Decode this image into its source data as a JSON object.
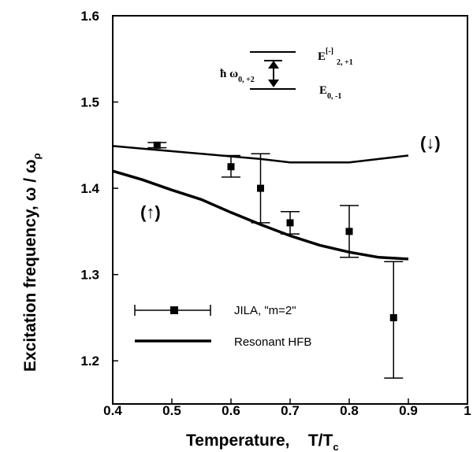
{
  "chart_data": {
    "type": "line",
    "xlabel": "Temperature,    T/T",
    "xlabel_sub": "c",
    "ylabel": "Excitation frequency,  ω / ω",
    "ylabel_sub": "ρ",
    "xlim": [
      0.4,
      1.0
    ],
    "ylim": [
      1.15,
      1.6
    ],
    "x_ticks": [
      0.4,
      0.5,
      0.6,
      0.7,
      0.8,
      0.9,
      1.0
    ],
    "x_tick_labels": [
      "0.4",
      "0.5",
      "0.6",
      "0.7",
      "0.8",
      "0.9",
      "1"
    ],
    "y_ticks": [
      1.2,
      1.3,
      1.4,
      1.5,
      1.6
    ],
    "y_tick_labels": [
      "1.2",
      "1.3",
      "1.4",
      "1.5",
      "1.6"
    ],
    "grid": false,
    "legend_position": "bottom-left",
    "series": [
      {
        "name": "JILA, \"m=2\"",
        "kind": "errorbar",
        "x": [
          0.475,
          0.6,
          0.65,
          0.7,
          0.8,
          0.875
        ],
        "y": [
          1.45,
          1.425,
          1.4,
          1.36,
          1.35,
          1.25
        ],
        "yerr_low": [
          1.447,
          1.413,
          1.36,
          1.347,
          1.32,
          1.18
        ],
        "yerr_high": [
          1.453,
          1.438,
          1.44,
          1.373,
          1.38,
          1.315
        ]
      },
      {
        "name": "Resonant HFB",
        "kind": "line",
        "x": [
          0.4,
          0.45,
          0.5,
          0.55,
          0.6,
          0.65,
          0.7,
          0.75,
          0.8,
          0.85,
          0.9
        ],
        "y": [
          1.42,
          1.41,
          1.398,
          1.387,
          1.372,
          1.358,
          1.345,
          1.334,
          1.326,
          1.32,
          1.318
        ]
      },
      {
        "name": "",
        "kind": "line",
        "x": [
          0.4,
          0.45,
          0.5,
          0.55,
          0.6,
          0.65,
          0.7,
          0.75,
          0.8,
          0.85,
          0.9
        ],
        "y": [
          1.449,
          1.446,
          1.443,
          1.44,
          1.437,
          1.434,
          1.43,
          1.43,
          1.43,
          1.434,
          1.438
        ]
      }
    ],
    "legend": [
      {
        "label": "JILA, \"m=2\"",
        "style": "errorbar"
      },
      {
        "label": "Resonant HFB",
        "style": "line"
      }
    ],
    "annotations": {
      "curve_up": "(↑)",
      "curve_down": "(↓)",
      "inset_upper": "E",
      "inset_upper_sup": "[-]",
      "inset_upper_sub": "2, +1",
      "inset_lower": "E",
      "inset_lower_sub": "0, -1",
      "inset_hbar": "ħ ω",
      "inset_hbar_sub": "0, +2"
    }
  }
}
